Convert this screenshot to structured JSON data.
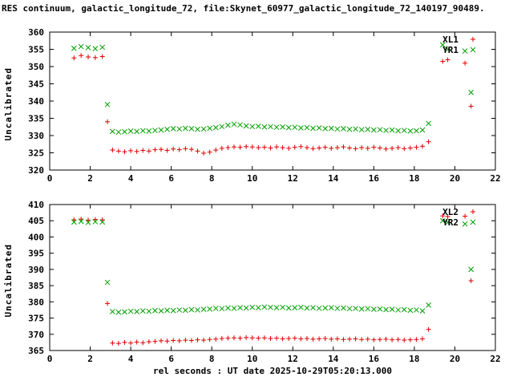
{
  "title": "RES continuum, galactic_longitude_72, file:Skynet_60977_galactic_longitude_72_140197_90489.",
  "xlabel": "rel seconds : UT date 2025-10-29T05:20:13.000",
  "chart_data": [
    {
      "type": "scatter",
      "ylabel": "Uncalibrated",
      "xlim": [
        0,
        22
      ],
      "xtick_step": 2,
      "ylim": [
        320,
        360
      ],
      "ytick_step": 5,
      "legend_position": "top-right",
      "grid": false,
      "x": [
        1.2,
        1.55,
        1.9,
        2.25,
        2.6,
        2.85,
        3.1,
        3.4,
        3.7,
        4.0,
        4.3,
        4.6,
        4.9,
        5.2,
        5.5,
        5.8,
        6.1,
        6.4,
        6.7,
        7.0,
        7.3,
        7.6,
        7.9,
        8.2,
        8.5,
        8.8,
        9.1,
        9.4,
        9.7,
        10.0,
        10.3,
        10.6,
        10.9,
        11.2,
        11.5,
        11.8,
        12.1,
        12.4,
        12.7,
        13.0,
        13.3,
        13.6,
        13.9,
        14.2,
        14.5,
        14.8,
        15.1,
        15.4,
        15.7,
        16.0,
        16.3,
        16.6,
        16.9,
        17.2,
        17.5,
        17.8,
        18.1,
        18.4,
        18.7,
        19.4,
        19.65,
        20.5,
        20.8
      ],
      "series": [
        {
          "name": "XL1",
          "color": "#e00000",
          "marker": "plus",
          "y": [
            352.5,
            353.2,
            352.8,
            352.6,
            352.9,
            334.0,
            325.8,
            325.5,
            325.3,
            325.6,
            325.4,
            325.7,
            325.5,
            325.9,
            326.0,
            325.7,
            326.1,
            325.9,
            326.2,
            326.0,
            325.5,
            324.9,
            325.2,
            325.8,
            326.3,
            326.5,
            326.7,
            326.6,
            326.8,
            326.7,
            326.5,
            326.6,
            326.4,
            326.7,
            326.5,
            326.3,
            326.6,
            326.8,
            326.5,
            326.2,
            326.4,
            326.6,
            326.3,
            326.5,
            326.7,
            326.4,
            326.2,
            326.5,
            326.3,
            326.6,
            326.4,
            326.1,
            326.3,
            326.5,
            326.2,
            326.4,
            326.6,
            326.9,
            328.2,
            351.5,
            352.0,
            351.0,
            338.5
          ]
        },
        {
          "name": "YR1",
          "color": "#00a000",
          "marker": "x",
          "y": [
            355.3,
            355.8,
            355.5,
            355.2,
            355.6,
            339.0,
            331.2,
            331.0,
            331.1,
            331.3,
            331.2,
            331.4,
            331.3,
            331.5,
            331.6,
            331.8,
            332.0,
            331.9,
            332.1,
            332.0,
            331.8,
            331.9,
            332.1,
            332.3,
            332.6,
            333.0,
            333.3,
            333.1,
            332.8,
            332.6,
            332.7,
            332.5,
            332.6,
            332.4,
            332.5,
            332.3,
            332.4,
            332.2,
            332.3,
            332.1,
            332.2,
            332.0,
            332.1,
            331.9,
            332.0,
            331.8,
            331.9,
            331.7,
            331.8,
            331.6,
            331.7,
            331.5,
            331.6,
            331.4,
            331.5,
            331.3,
            331.4,
            331.6,
            333.5,
            356.3,
            355.0,
            354.5,
            342.5
          ]
        }
      ]
    },
    {
      "type": "scatter",
      "ylabel": "Uncalibrated",
      "xlim": [
        0,
        22
      ],
      "xtick_step": 2,
      "ylim": [
        365,
        410
      ],
      "ytick_step": 5,
      "legend_position": "top-right",
      "grid": false,
      "x": [
        1.2,
        1.55,
        1.9,
        2.25,
        2.6,
        2.85,
        3.1,
        3.4,
        3.7,
        4.0,
        4.3,
        4.6,
        4.9,
        5.2,
        5.5,
        5.8,
        6.1,
        6.4,
        6.7,
        7.0,
        7.3,
        7.6,
        7.9,
        8.2,
        8.5,
        8.8,
        9.1,
        9.4,
        9.7,
        10.0,
        10.3,
        10.6,
        10.9,
        11.2,
        11.5,
        11.8,
        12.1,
        12.4,
        12.7,
        13.0,
        13.3,
        13.6,
        13.9,
        14.2,
        14.5,
        14.8,
        15.1,
        15.4,
        15.7,
        16.0,
        16.3,
        16.6,
        16.9,
        17.2,
        17.5,
        17.8,
        18.1,
        18.4,
        18.7,
        19.4,
        19.65,
        20.5,
        20.8
      ],
      "series": [
        {
          "name": "XL2",
          "color": "#e00000",
          "marker": "plus",
          "y": [
            405.3,
            405.5,
            405.2,
            405.4,
            405.3,
            379.5,
            367.3,
            367.2,
            367.5,
            367.3,
            367.6,
            367.4,
            367.7,
            367.8,
            368.0,
            367.9,
            368.1,
            368.0,
            368.2,
            368.1,
            368.3,
            368.2,
            368.4,
            368.5,
            368.7,
            368.8,
            368.9,
            368.8,
            369.0,
            368.9,
            368.8,
            368.9,
            368.7,
            368.8,
            368.6,
            368.7,
            368.8,
            368.6,
            368.7,
            368.5,
            368.6,
            368.7,
            368.5,
            368.6,
            368.4,
            368.5,
            368.6,
            368.4,
            368.5,
            368.3,
            368.4,
            368.5,
            368.3,
            368.4,
            368.2,
            368.3,
            368.4,
            368.6,
            371.5,
            406.5,
            406.3,
            406.4,
            386.5
          ]
        },
        {
          "name": "YR2",
          "color": "#00a000",
          "marker": "x",
          "y": [
            404.6,
            404.8,
            404.5,
            404.7,
            404.6,
            386.0,
            377.0,
            376.8,
            376.9,
            377.1,
            377.0,
            377.2,
            377.1,
            377.3,
            377.2,
            377.4,
            377.3,
            377.5,
            377.4,
            377.6,
            377.5,
            377.7,
            377.8,
            378.0,
            377.9,
            378.1,
            378.0,
            378.2,
            378.1,
            378.3,
            378.2,
            378.4,
            378.3,
            378.2,
            378.3,
            378.1,
            378.2,
            378.3,
            378.1,
            378.2,
            378.0,
            378.1,
            378.2,
            378.0,
            378.1,
            377.9,
            378.0,
            377.8,
            377.9,
            377.7,
            377.8,
            377.6,
            377.7,
            377.5,
            377.6,
            377.4,
            377.5,
            377.2,
            379.0,
            405.0,
            404.5,
            404.0,
            390.0
          ]
        }
      ]
    }
  ]
}
